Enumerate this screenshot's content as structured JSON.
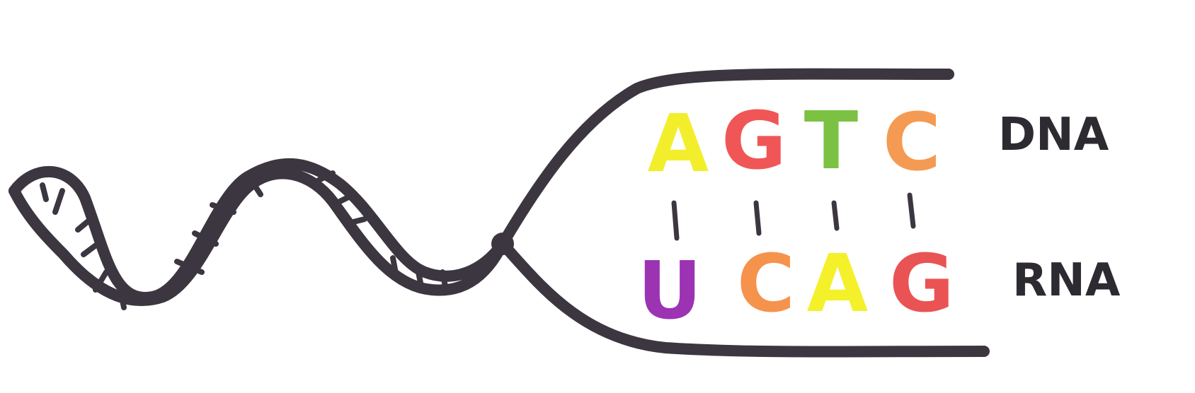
{
  "dna": {
    "label": "DNA",
    "bases": [
      {
        "letter": "A",
        "color": "#f2ee2c"
      },
      {
        "letter": "G",
        "color": "#f05656"
      },
      {
        "letter": "T",
        "color": "#7bc142"
      },
      {
        "letter": "C",
        "color": "#f59a52"
      }
    ]
  },
  "rna": {
    "label": "RNA",
    "bases": [
      {
        "letter": "U",
        "color": "#9b33b3"
      },
      {
        "letter": "C",
        "color": "#f5934c"
      },
      {
        "letter": "A",
        "color": "#f4f02a"
      },
      {
        "letter": "G",
        "color": "#ea5354"
      }
    ]
  },
  "colors": {
    "ink": "#3c3640"
  }
}
